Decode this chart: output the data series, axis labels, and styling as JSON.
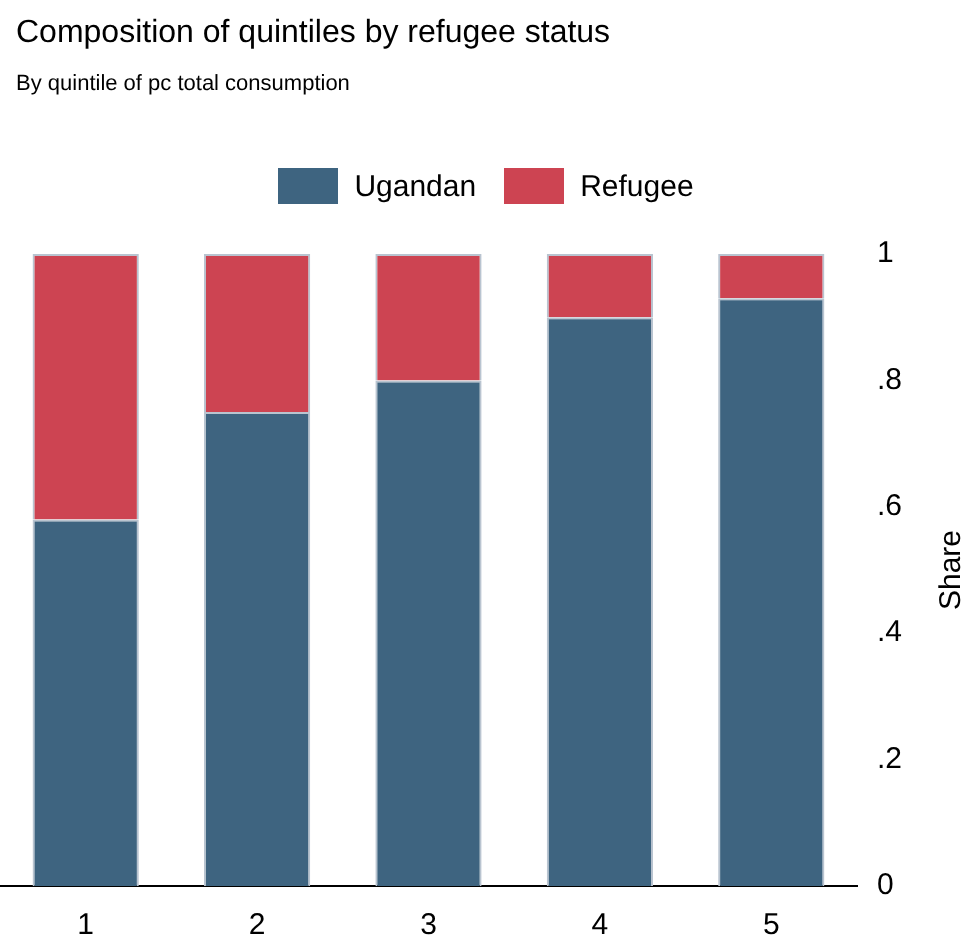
{
  "chart_data": {
    "type": "bar",
    "title": "Composition of quintiles by refugee status",
    "subtitle": "By quintile of pc total consumption",
    "ylabel": "Share",
    "categories": [
      "1",
      "2",
      "3",
      "4",
      "5"
    ],
    "series": [
      {
        "name": "Ugandan",
        "color": "#3e6480",
        "values": [
          0.58,
          0.75,
          0.8,
          0.9,
          0.93
        ]
      },
      {
        "name": "Refugee",
        "color": "#cd4452",
        "values": [
          0.42,
          0.25,
          0.2,
          0.1,
          0.07
        ]
      }
    ],
    "stacked": true,
    "ylim": [
      0,
      1
    ],
    "yticks": [
      0,
      {
        "value": 0.2,
        "label": ".2"
      },
      {
        "value": 0.4,
        "label": ".4"
      },
      {
        "value": 0.6,
        "label": ".6"
      },
      {
        "value": 0.8,
        "label": ".8"
      },
      1
    ],
    "legend": "top"
  }
}
